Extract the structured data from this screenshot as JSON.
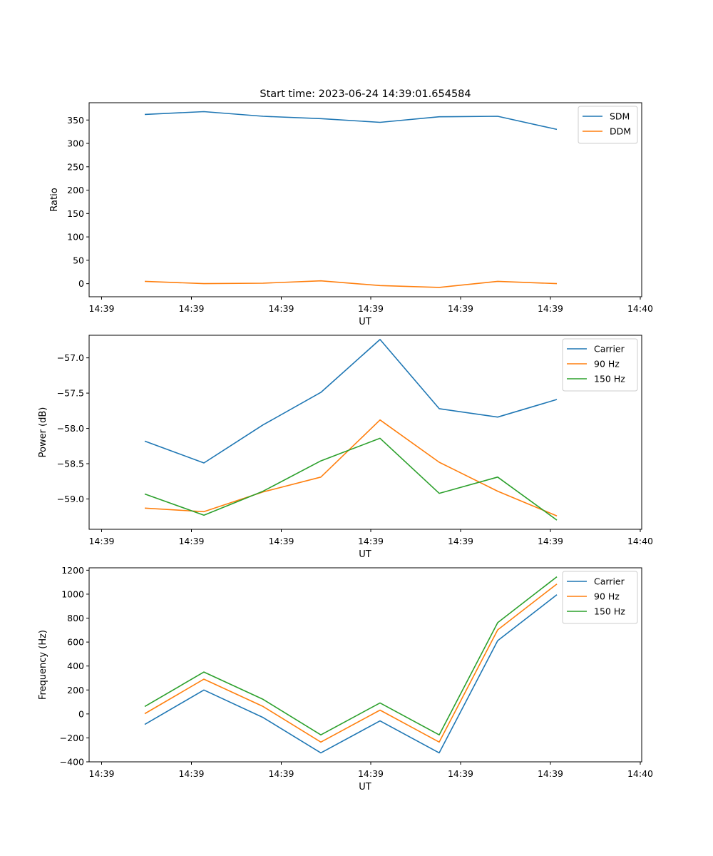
{
  "figure": {
    "title": "Start time: 2023-06-24 14:39:01.654584"
  },
  "chart_data": [
    {
      "type": "line",
      "xlabel": "UT",
      "ylabel": "Ratio",
      "title": "",
      "x_tick_labels": [
        "14:39",
        "14:39",
        "14:39",
        "14:39",
        "14:39",
        "14:39",
        "14:40"
      ],
      "x_points": [
        1,
        2,
        3,
        4,
        5,
        6,
        7,
        8
      ],
      "xlim": [
        0.25,
        9.25
      ],
      "ylim": [
        -28,
        387
      ],
      "y_ticks": [
        0,
        50,
        100,
        150,
        200,
        250,
        300,
        350
      ],
      "legend": "top-right",
      "series": [
        {
          "name": "SDM",
          "color": "#1f77b4",
          "values": [
            362,
            368,
            358,
            353,
            345,
            357,
            358,
            330
          ]
        },
        {
          "name": "DDM",
          "color": "#ff7f0e",
          "values": [
            5,
            0,
            1,
            6,
            -4,
            -8,
            5,
            0
          ]
        }
      ]
    },
    {
      "type": "line",
      "xlabel": "UT",
      "ylabel": "Power (dB)",
      "title": "",
      "x_tick_labels": [
        "14:39",
        "14:39",
        "14:39",
        "14:39",
        "14:39",
        "14:39",
        "14:40"
      ],
      "x_points": [
        1,
        2,
        3,
        4,
        5,
        6,
        7,
        8
      ],
      "xlim": [
        0.25,
        9.25
      ],
      "ylim": [
        -59.43,
        -56.68
      ],
      "y_ticks": [
        -59.0,
        -58.5,
        -58.0,
        -57.5,
        -57.0
      ],
      "y_tick_labels": [
        "−59.0",
        "−58.5",
        "−58.0",
        "−57.5",
        "−57.0"
      ],
      "legend": "top-right",
      "series": [
        {
          "name": "Carrier",
          "color": "#1f77b4",
          "values": [
            -58.18,
            -58.49,
            -57.95,
            -57.49,
            -56.74,
            -57.72,
            -57.84,
            -57.59
          ]
        },
        {
          "name": "90 Hz",
          "color": "#ff7f0e",
          "values": [
            -59.13,
            -59.18,
            -58.9,
            -58.69,
            -57.88,
            -58.48,
            -58.89,
            -59.24
          ]
        },
        {
          "name": "150 Hz",
          "color": "#2ca02c",
          "values": [
            -58.93,
            -59.23,
            -58.89,
            -58.46,
            -58.14,
            -58.92,
            -58.69,
            -59.3
          ]
        }
      ]
    },
    {
      "type": "line",
      "xlabel": "UT",
      "ylabel": "Frequency (Hz)",
      "title": "",
      "x_tick_labels": [
        "14:39",
        "14:39",
        "14:39",
        "14:39",
        "14:39",
        "14:39",
        "14:40"
      ],
      "x_points": [
        1,
        2,
        3,
        4,
        5,
        6,
        7,
        8
      ],
      "xlim": [
        0.25,
        9.25
      ],
      "ylim": [
        -400,
        1220
      ],
      "y_ticks": [
        -400,
        -200,
        0,
        200,
        400,
        600,
        800,
        1000,
        1200
      ],
      "y_tick_labels": [
        "−400",
        "−200",
        "0",
        "200",
        "400",
        "600",
        "800",
        "1000",
        "1200"
      ],
      "legend": "top-right",
      "series": [
        {
          "name": "Carrier",
          "color": "#1f77b4",
          "values": [
            -88,
            200,
            -30,
            -325,
            -58,
            -325,
            612,
            995
          ]
        },
        {
          "name": "90 Hz",
          "color": "#ff7f0e",
          "values": [
            2,
            290,
            62,
            -235,
            32,
            -235,
            702,
            1085
          ]
        },
        {
          "name": "150 Hz",
          "color": "#2ca02c",
          "values": [
            62,
            350,
            122,
            -175,
            92,
            -175,
            762,
            1145
          ]
        }
      ]
    }
  ]
}
